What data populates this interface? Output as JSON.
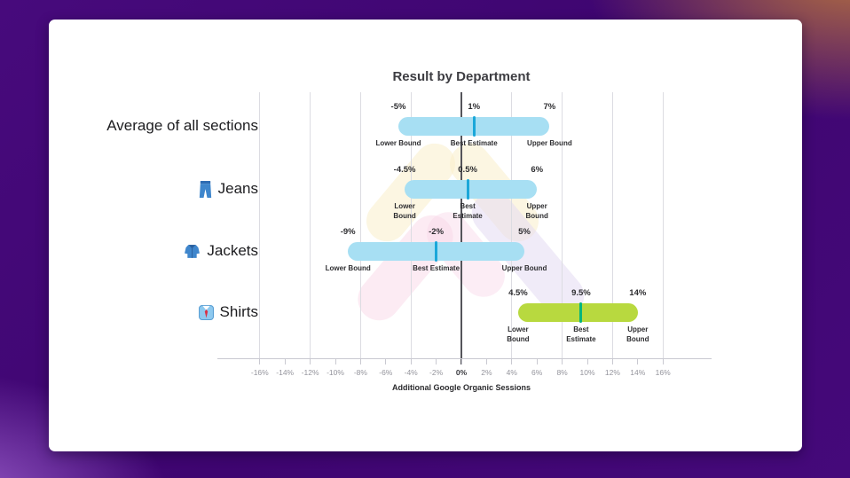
{
  "background": {
    "base_purple": "#3e0570",
    "corner_orange": "#b5713f",
    "corner_violet": "#9a5ecb"
  },
  "card": {
    "background": "#ffffff"
  },
  "chart_data": {
    "type": "range_bar",
    "title": "Result by Department",
    "xlabel": "Additional Google Organic Sessions",
    "x_unit": "%",
    "xlim": [
      -16,
      16
    ],
    "x_tick_step": 2,
    "gridline_step": 4,
    "grid_on": true,
    "zero_line": true,
    "x_tick_labels": [
      "-16%",
      "-14%",
      "-12%",
      "-10%",
      "-8%",
      "-6%",
      "-4%",
      "-2%",
      "0%",
      "2%",
      "4%",
      "6%",
      "8%",
      "10%",
      "12%",
      "14%",
      "16%"
    ],
    "bound_captions": {
      "lower": "Lower Bound",
      "best": "Best Estimate",
      "upper": "Upper Bound"
    },
    "rows": [
      {
        "category": "Average of all sections",
        "icon": null,
        "lower": -5,
        "best": 1,
        "upper": 7,
        "labels": {
          "lower": "-5%",
          "best": "1%",
          "upper": "7%"
        },
        "bar_color": "#a7dff3",
        "marker_color": "#1aa7d9",
        "caption_two_line": false
      },
      {
        "category": "Jeans",
        "icon": "jeans-icon",
        "lower": -4.5,
        "best": 0.5,
        "upper": 6,
        "labels": {
          "lower": "-4.5%",
          "best": "0.5%",
          "upper": "6%"
        },
        "bar_color": "#a7dff3",
        "marker_color": "#1aa7d9",
        "caption_two_line": true
      },
      {
        "category": "Jackets",
        "icon": "jacket-icon",
        "lower": -9,
        "best": -2,
        "upper": 5,
        "labels": {
          "lower": "-9%",
          "best": "-2%",
          "upper": "5%"
        },
        "bar_color": "#a7dff3",
        "marker_color": "#1aa7d9",
        "caption_two_line": false
      },
      {
        "category": "Shirts",
        "icon": "shirt-icon",
        "lower": 4.5,
        "best": 9.5,
        "upper": 14,
        "labels": {
          "lower": "4.5%",
          "best": "9.5%",
          "upper": "14%"
        },
        "bar_color": "#b8d93f",
        "marker_color": "#00b57d",
        "caption_two_line": true
      }
    ]
  }
}
